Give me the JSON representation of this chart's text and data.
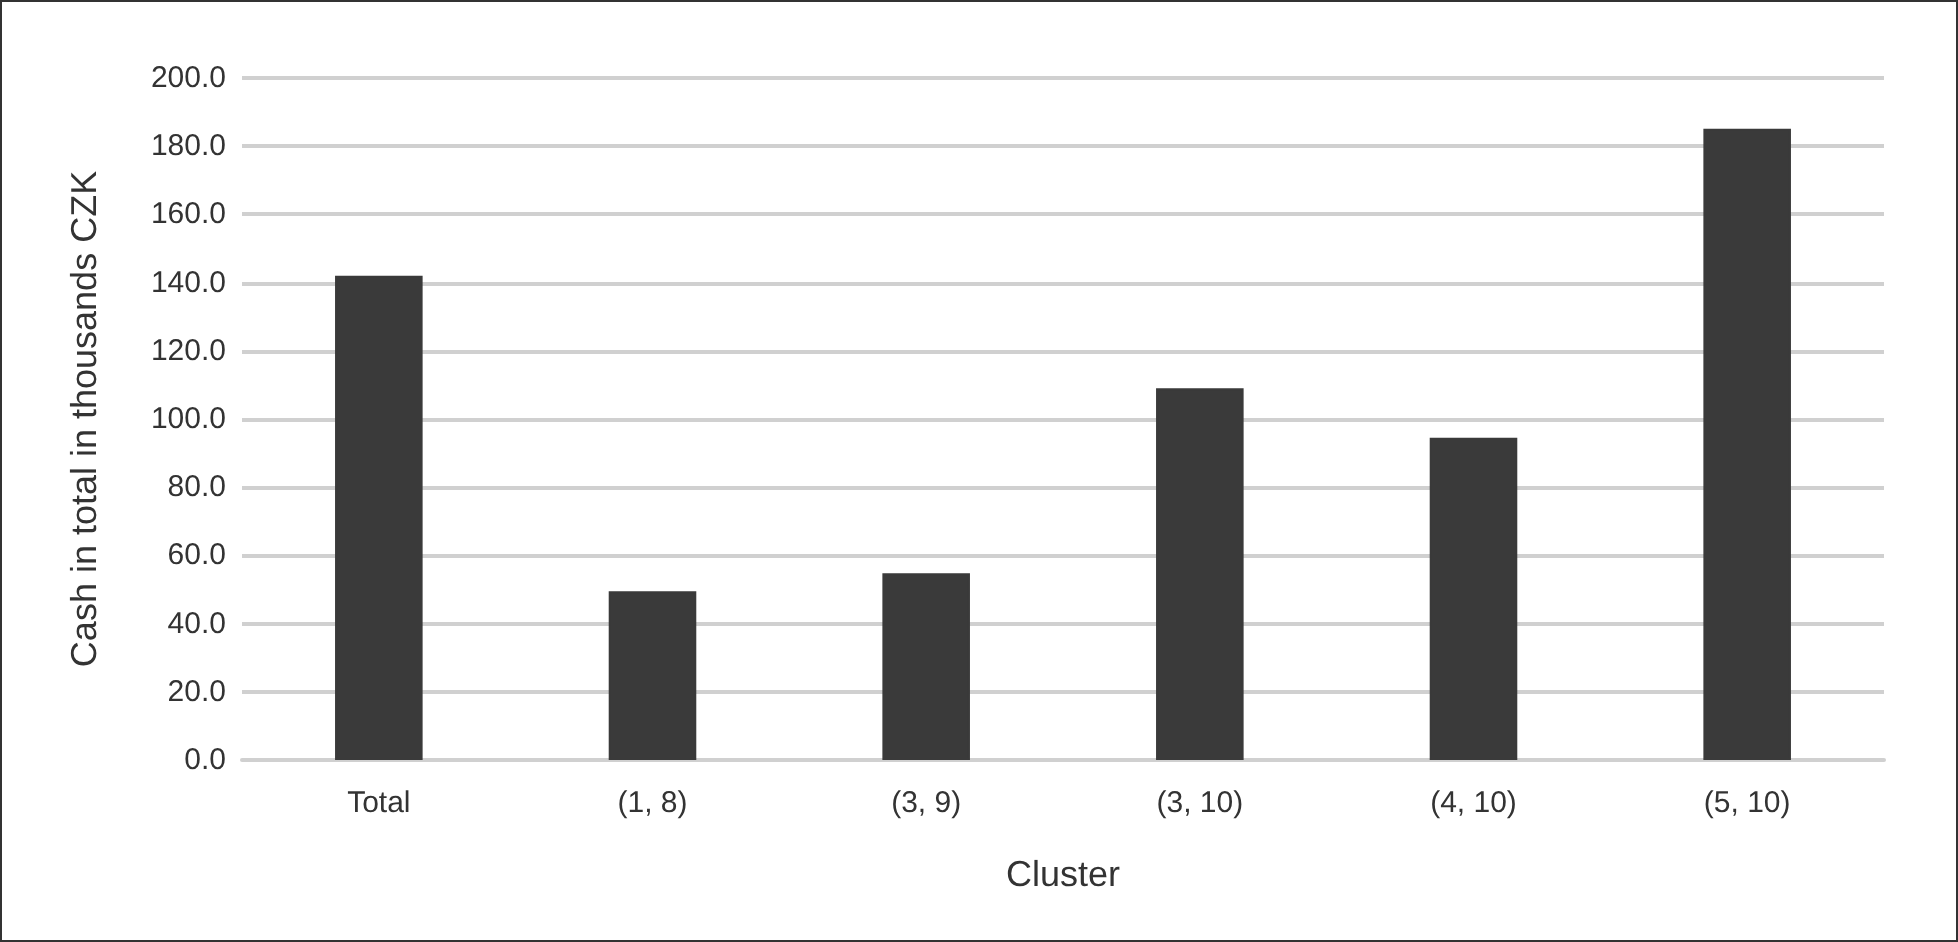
{
  "chart_data": {
    "type": "bar",
    "xlabel": "Cluster",
    "ylabel": "Cash in total in thousands CZK",
    "categories": [
      "Total",
      "(1, 8)",
      "(3, 9)",
      "(3, 10)",
      "(4, 10)",
      "(5, 10)"
    ],
    "values": [
      142.0,
      49.5,
      54.8,
      109.0,
      94.5,
      185.1
    ],
    "color": "#3a3a3a",
    "ylim": [
      0,
      200
    ],
    "yticks": [
      {
        "value": 0,
        "label": "0.0"
      },
      {
        "value": 20,
        "label": "20.0"
      },
      {
        "value": 40,
        "label": "40.0"
      },
      {
        "value": 60,
        "label": "60.0"
      },
      {
        "value": 80,
        "label": "80.0"
      },
      {
        "value": 100,
        "label": "100.0"
      },
      {
        "value": 120,
        "label": "120.0"
      },
      {
        "value": 140,
        "label": "140.0"
      },
      {
        "value": 160,
        "label": "160.0"
      },
      {
        "value": 180,
        "label": "180.0"
      },
      {
        "value": 200,
        "label": "200.0"
      }
    ],
    "grid": "y"
  }
}
